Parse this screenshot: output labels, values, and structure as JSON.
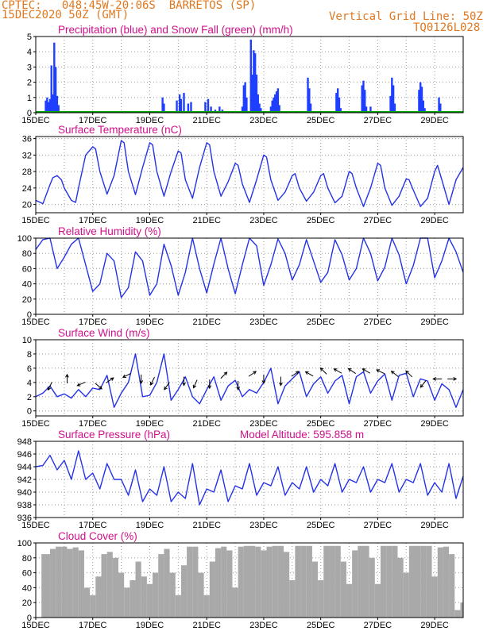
{
  "header": {
    "line1": "CPTEC:   048:45W-20:06S  BARRETOS (SP)",
    "line2": "15DEC2020 50Z (GMT)",
    "grid_note": "Vertical Grid Line: 50Z",
    "code": "TQ0126L028"
  },
  "colors": {
    "header": "#e07820",
    "title": "#d0108a",
    "precip": "#1f3fff",
    "snow": "#00a000",
    "line": "#2432e8",
    "cloud": "#a9a9a9"
  },
  "x_ticks": [
    "15DEC",
    "17DEC",
    "19DEC",
    "21DEC",
    "23DEC",
    "25DEC",
    "27DEC",
    "29DEC"
  ],
  "chart_data": [
    {
      "id": "precip",
      "type": "bar",
      "title": "Precipitation (blue) and Snow Fall (green) (mm/h)",
      "ylim": [
        0,
        5
      ],
      "yticks": [
        0,
        1,
        2,
        3,
        4,
        5
      ],
      "x_unit": "days since 15DEC 00Z",
      "xlim": [
        0,
        15
      ],
      "series": [
        {
          "name": "Precipitation",
          "x": [
            0.35,
            0.4,
            0.45,
            0.5,
            0.55,
            0.6,
            0.65,
            0.7,
            0.75,
            0.8,
            4.45,
            4.5,
            4.95,
            5.05,
            5.1,
            5.2,
            5.35,
            5.45,
            5.95,
            6.05,
            6.15,
            6.3,
            6.45,
            6.55,
            7.25,
            7.3,
            7.35,
            7.4,
            7.55,
            7.6,
            7.65,
            7.7,
            7.75,
            7.8,
            7.85,
            7.9,
            8.25,
            8.3,
            8.35,
            8.4,
            8.45,
            8.5,
            8.55,
            9.55,
            9.6,
            9.65,
            10.55,
            10.6,
            10.65,
            10.7,
            11.45,
            11.5,
            11.55,
            11.6,
            11.75,
            12.45,
            12.5,
            12.55,
            12.6,
            13.45,
            13.5,
            13.55,
            13.6,
            13.65,
            14.15,
            14.2
          ],
          "values": [
            0.8,
            1.0,
            0.7,
            0.9,
            3.1,
            1.2,
            4.6,
            3.0,
            1.1,
            0.5,
            1.0,
            0.6,
            0.8,
            1.2,
            0.9,
            1.3,
            0.6,
            0.7,
            0.7,
            0.9,
            0.4,
            0.2,
            0.4,
            0.2,
            0.4,
            1.8,
            2.0,
            1.0,
            4.8,
            2.5,
            4.1,
            3.9,
            2.5,
            1.2,
            0.6,
            0.3,
            0.4,
            0.8,
            1.0,
            1.2,
            1.4,
            1.6,
            0.5,
            2.3,
            1.6,
            0.6,
            1.3,
            1.6,
            1.0,
            0.3,
            1.8,
            2.1,
            1.5,
            0.4,
            0.4,
            1.1,
            2.3,
            1.8,
            0.6,
            1.5,
            2.0,
            1.7,
            0.8,
            0.3,
            1.0,
            0.6
          ]
        },
        {
          "name": "Snow Fall",
          "x": [
            0,
            15
          ],
          "values": [
            0,
            0
          ]
        }
      ]
    },
    {
      "id": "temp",
      "type": "line",
      "title": "Surface Temperature (nC)",
      "ylim": [
        18,
        36.5
      ],
      "yticks": [
        20,
        24,
        28,
        32,
        36
      ],
      "x_unit": "days since 15DEC 00Z",
      "xlim": [
        0,
        15
      ],
      "series": [
        {
          "name": "Surface Temperature",
          "x": [
            0,
            0.25,
            0.5,
            0.6,
            0.75,
            0.9,
            1.0,
            1.25,
            1.4,
            1.5,
            1.75,
            2.0,
            2.1,
            2.25,
            2.5,
            2.75,
            3.0,
            3.1,
            3.25,
            3.5,
            3.75,
            4.0,
            4.1,
            4.25,
            4.5,
            4.75,
            5.0,
            5.1,
            5.25,
            5.5,
            5.75,
            6.0,
            6.1,
            6.25,
            6.5,
            6.75,
            7.0,
            7.1,
            7.25,
            7.5,
            7.75,
            8.0,
            8.1,
            8.25,
            8.5,
            8.75,
            9.0,
            9.1,
            9.25,
            9.5,
            9.75,
            10.0,
            10.1,
            10.25,
            10.5,
            10.75,
            11.0,
            11.1,
            11.25,
            11.5,
            11.75,
            12.0,
            12.1,
            12.25,
            12.5,
            12.75,
            13.0,
            13.1,
            13.25,
            13.5,
            13.75,
            14.0,
            14.1,
            14.25,
            14.5,
            14.75,
            15.0
          ],
          "values": [
            21,
            20.2,
            24.8,
            26.5,
            27,
            26,
            24,
            21,
            20.5,
            24,
            32,
            34,
            33.5,
            28,
            22.5,
            27,
            35.5,
            35,
            28,
            22.4,
            29,
            35,
            34.5,
            28,
            22,
            28,
            33,
            32.5,
            26,
            21.5,
            29,
            35,
            34.5,
            28,
            22,
            25.5,
            30,
            29.5,
            25,
            20.5,
            26,
            32,
            31.5,
            26,
            21,
            23,
            27,
            27.5,
            24,
            20.8,
            23,
            27,
            27.5,
            24,
            20.4,
            22,
            28,
            27.5,
            24,
            19.5,
            24,
            30,
            29.5,
            24,
            19.8,
            22,
            26.2,
            26,
            23.5,
            19.5,
            21.5,
            28,
            29.5,
            26,
            20,
            26,
            29
          ]
        }
      ]
    },
    {
      "id": "rh",
      "type": "line",
      "title": "Relative Humidity (%)",
      "ylim": [
        0,
        100
      ],
      "yticks": [
        0,
        20,
        40,
        60,
        80,
        100
      ],
      "x_unit": "days since 15DEC 00Z",
      "xlim": [
        0,
        15
      ],
      "series": [
        {
          "name": "Relative Humidity",
          "x": [
            0,
            0.25,
            0.5,
            0.75,
            1.0,
            1.25,
            1.5,
            1.75,
            2.0,
            2.25,
            2.5,
            2.75,
            3.0,
            3.25,
            3.5,
            3.75,
            4.0,
            4.25,
            4.5,
            4.75,
            5.0,
            5.25,
            5.5,
            5.75,
            6.0,
            6.25,
            6.5,
            6.75,
            7.0,
            7.25,
            7.5,
            7.75,
            8.0,
            8.25,
            8.5,
            8.75,
            9.0,
            9.25,
            9.5,
            9.75,
            10.0,
            10.25,
            10.5,
            10.75,
            11.0,
            11.25,
            11.5,
            11.75,
            12.0,
            12.25,
            12.5,
            12.75,
            13.0,
            13.25,
            13.5,
            13.75,
            14.0,
            14.25,
            14.5,
            14.75,
            15.0
          ],
          "values": [
            85,
            98,
            100,
            60,
            75,
            92,
            100,
            65,
            30,
            40,
            80,
            70,
            22,
            35,
            82,
            70,
            25,
            40,
            92,
            64,
            25,
            55,
            100,
            60,
            28,
            66,
            100,
            60,
            27,
            65,
            100,
            90,
            38,
            65,
            99,
            80,
            45,
            65,
            98,
            70,
            42,
            55,
            98,
            78,
            45,
            60,
            100,
            80,
            44,
            62,
            100,
            78,
            40,
            64,
            100,
            100,
            48,
            70,
            100,
            82,
            55
          ]
        }
      ]
    },
    {
      "id": "wind",
      "type": "line",
      "title": "Surface Wind (m/s)",
      "ylim": [
        -0.7,
        10
      ],
      "yticks": [
        0,
        2,
        4,
        6,
        8,
        10
      ],
      "x_unit": "days since 15DEC 00Z",
      "xlim": [
        0,
        15
      ],
      "series": [
        {
          "name": "Surface Wind",
          "x": [
            0,
            0.25,
            0.5,
            0.75,
            1.0,
            1.25,
            1.5,
            1.75,
            2.0,
            2.25,
            2.5,
            2.75,
            3.0,
            3.25,
            3.5,
            3.75,
            4.0,
            4.25,
            4.5,
            4.75,
            5.0,
            5.25,
            5.5,
            5.75,
            6.0,
            6.25,
            6.5,
            6.75,
            7.0,
            7.25,
            7.5,
            7.75,
            8.0,
            8.25,
            8.5,
            8.75,
            9.0,
            9.25,
            9.5,
            9.75,
            10.0,
            10.25,
            10.5,
            10.75,
            11.0,
            11.25,
            11.5,
            11.75,
            12.0,
            12.25,
            12.5,
            12.75,
            13.0,
            13.25,
            13.5,
            13.75,
            14.0,
            14.25,
            14.5,
            14.75,
            15.0
          ],
          "values": [
            2.0,
            2.5,
            3.5,
            2.0,
            2.4,
            1.8,
            3.0,
            2.0,
            3.2,
            3.0,
            5.0,
            0.5,
            2.5,
            4.0,
            8.0,
            2.0,
            2.2,
            4.0,
            8.0,
            1.5,
            3.0,
            4.8,
            2.0,
            1.0,
            3.0,
            4.8,
            1.5,
            3.5,
            4.3,
            2.0,
            3.0,
            2.5,
            4.0,
            6.0,
            1.0,
            3.5,
            4.5,
            5.5,
            2.0,
            3.8,
            4.8,
            2.5,
            4.2,
            5.0,
            1.0,
            4.8,
            5.5,
            2.5,
            4.2,
            5.2,
            1.5,
            5.0,
            5.3,
            2.0,
            4.5,
            4.2,
            1.5,
            3.8,
            3.0,
            0.5,
            3.0
          ]
        }
      ]
    },
    {
      "id": "pres",
      "type": "line",
      "title": "Surface Pressure (hPa)",
      "annotation": "Model Altitude: 595.858 m",
      "ylim": [
        936,
        948
      ],
      "yticks": [
        936,
        938,
        940,
        942,
        944,
        946,
        948
      ],
      "x_unit": "days since 15DEC 00Z",
      "xlim": [
        0,
        15
      ],
      "series": [
        {
          "name": "Surface Pressure",
          "x": [
            0,
            0.25,
            0.5,
            0.75,
            1.0,
            1.25,
            1.5,
            1.75,
            2.0,
            2.25,
            2.5,
            2.75,
            3.0,
            3.25,
            3.5,
            3.75,
            4.0,
            4.25,
            4.5,
            4.75,
            5.0,
            5.25,
            5.5,
            5.75,
            6.0,
            6.25,
            6.5,
            6.75,
            7.0,
            7.25,
            7.5,
            7.75,
            8.0,
            8.25,
            8.5,
            8.75,
            9.0,
            9.25,
            9.5,
            9.75,
            10.0,
            10.25,
            10.5,
            10.75,
            11.0,
            11.25,
            11.5,
            11.75,
            12.0,
            12.25,
            12.5,
            12.75,
            13.0,
            13.25,
            13.5,
            13.75,
            14.0,
            14.25,
            14.5,
            14.75,
            15.0
          ],
          "values": [
            944,
            944.2,
            945.8,
            943.5,
            945,
            942,
            946.5,
            942,
            943,
            940.5,
            944.5,
            942,
            942,
            939.5,
            943.5,
            938.5,
            940.5,
            939.5,
            944,
            938.5,
            940,
            939,
            944.5,
            938,
            940.5,
            940,
            943.5,
            938.5,
            941,
            940.5,
            944.5,
            939.5,
            941.5,
            941,
            944,
            939.5,
            941.5,
            940.5,
            944,
            940,
            942,
            941,
            944.5,
            940,
            942,
            941.5,
            944,
            940,
            942,
            941.5,
            944.5,
            940,
            942,
            941.5,
            944.5,
            939.5,
            941.5,
            940,
            944.5,
            939,
            942.5
          ]
        }
      ]
    },
    {
      "id": "cloud",
      "type": "area",
      "title": "Cloud Cover (%)",
      "ylim": [
        0,
        100
      ],
      "yticks": [
        0,
        20,
        40,
        60,
        80,
        100
      ],
      "x_unit": "days since 15DEC 00Z",
      "xlim": [
        0,
        15
      ],
      "series": [
        {
          "name": "Cloud Cover",
          "x": [
            0,
            0.2,
            0.5,
            0.7,
            0.9,
            1.1,
            1.3,
            1.5,
            1.7,
            1.9,
            2.1,
            2.3,
            2.5,
            2.7,
            2.9,
            3.1,
            3.3,
            3.5,
            3.7,
            3.9,
            4.1,
            4.3,
            4.5,
            4.7,
            4.9,
            5.1,
            5.3,
            5.5,
            5.7,
            5.9,
            6.1,
            6.3,
            6.5,
            6.7,
            6.9,
            7.1,
            7.3,
            7.5,
            7.7,
            7.9,
            8.1,
            8.3,
            8.5,
            8.7,
            8.9,
            9.1,
            9.3,
            9.5,
            9.7,
            9.9,
            10.1,
            10.3,
            10.5,
            10.7,
            10.9,
            11.1,
            11.3,
            11.5,
            11.7,
            11.9,
            12.1,
            12.3,
            12.5,
            12.7,
            12.9,
            13.1,
            13.3,
            13.5,
            13.7,
            13.9,
            14.1,
            14.3,
            14.5,
            14.7,
            14.9,
            15.0
          ],
          "values": [
            0,
            85,
            92,
            95,
            95,
            92,
            94,
            90,
            40,
            30,
            55,
            85,
            88,
            80,
            60,
            40,
            50,
            75,
            55,
            45,
            60,
            85,
            92,
            60,
            30,
            70,
            95,
            95,
            60,
            30,
            75,
            93,
            95,
            90,
            40,
            95,
            96,
            96,
            95,
            90,
            95,
            96,
            96,
            88,
            50,
            96,
            96,
            96,
            75,
            50,
            96,
            96,
            96,
            75,
            45,
            90,
            96,
            96,
            80,
            45,
            96,
            96,
            96,
            80,
            60,
            96,
            96,
            96,
            96,
            55,
            94,
            95,
            85,
            10,
            20,
            10
          ]
        }
      ]
    }
  ],
  "wind_vectors": {
    "x": [
      0.5,
      1.1,
      1.6,
      2.2,
      2.6,
      3.2,
      3.7,
      4.1,
      4.6,
      5.2,
      5.6,
      6.1,
      6.6,
      7.1,
      7.6,
      8.0,
      8.6,
      9.1,
      9.6,
      10.1,
      10.6,
      11.1,
      11.6,
      12.1,
      12.6,
      13.1,
      13.6,
      14.1,
      14.6
    ],
    "level": [
      3.5,
      4.5,
      3.8,
      3.5,
      4.3,
      5.0,
      4.5,
      4.2,
      3.5,
      4.2,
      3.8,
      3.8,
      5.0,
      3.6,
      5.2,
      4.5,
      4.2,
      5.2,
      5.2,
      5.6,
      5.6,
      5.6,
      5.6,
      5.5,
      5.2,
      5.2,
      3.8,
      4.5,
      4.5
    ],
    "u": [
      -0.3,
      0.0,
      -0.7,
      0.7,
      0.6,
      -0.8,
      0.0,
      -0.4,
      -0.5,
      0.0,
      -0.4,
      0.0,
      0.5,
      0.0,
      0.6,
      0.0,
      0.0,
      0.6,
      -0.7,
      -0.5,
      -0.7,
      -0.6,
      -0.7,
      -0.6,
      -0.5,
      -0.4,
      -0.4,
      -0.6,
      0.5
    ],
    "v": [
      -0.6,
      0.8,
      -0.3,
      -0.6,
      0.4,
      -0.4,
      -1.0,
      -0.8,
      -0.7,
      -1.0,
      -0.9,
      -1.0,
      0.5,
      -1.0,
      0.4,
      -0.9,
      -0.8,
      0.4,
      0.4,
      0.5,
      0.4,
      0.4,
      0.4,
      0.3,
      0.4,
      0.4,
      -0.5,
      0.0,
      0.0
    ]
  }
}
